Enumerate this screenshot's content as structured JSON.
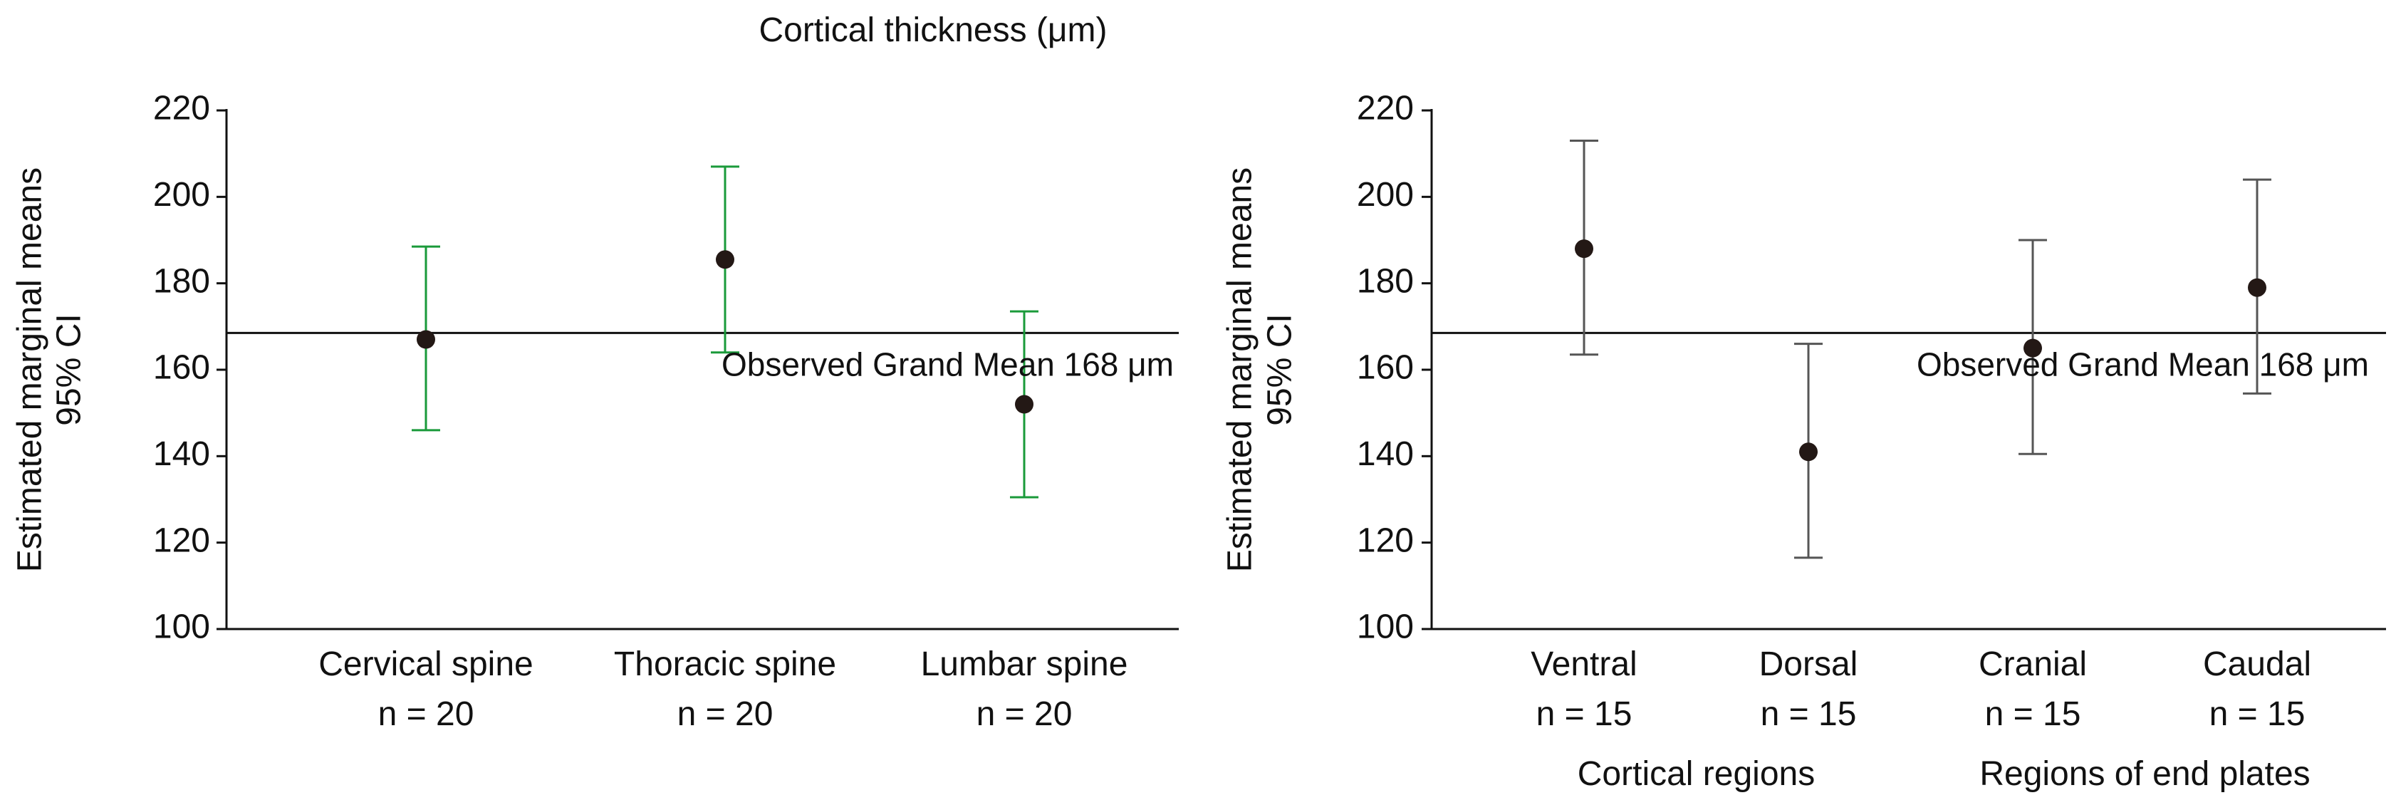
{
  "chart_data": [
    {
      "type": "errorbar",
      "title": "Cortical thickness (μm)",
      "ylabel_line1": "Estimated marginal means",
      "ylabel_line2": "95% CI",
      "ylim": [
        100,
        220
      ],
      "yticks": [
        100,
        120,
        140,
        160,
        180,
        200,
        220
      ],
      "categories": [
        "Cervical spine",
        "Thoracic spine",
        "Lumbar spine"
      ],
      "n_labels": [
        "n = 20",
        "n = 20",
        "n = 20"
      ],
      "group_labels": [],
      "means": [
        167,
        185.5,
        152
      ],
      "ci_lower": [
        146,
        164,
        130.5
      ],
      "ci_upper": [
        188.5,
        207,
        173.5
      ],
      "reference_line": {
        "value": 168.5,
        "label": "Observed Grand Mean 168 μm"
      },
      "colors": {
        "errorbar": "#1a9a3a",
        "marker": "#231815",
        "axis": "#111111"
      }
    },
    {
      "type": "errorbar",
      "ylabel_line1": "Estimated marginal means",
      "ylabel_line2": "95% CI",
      "ylim": [
        100,
        220
      ],
      "yticks": [
        100,
        120,
        140,
        160,
        180,
        200,
        220
      ],
      "categories": [
        "Ventral",
        "Dorsal",
        "Cranial",
        "Caudal"
      ],
      "n_labels": [
        "n = 15",
        "n = 15",
        "n = 15",
        "n = 15"
      ],
      "group_labels": [
        "Cortical regions",
        "Regions of end plates"
      ],
      "means": [
        188,
        141,
        165,
        179
      ],
      "ci_lower": [
        163.5,
        116.5,
        140.5,
        154.5
      ],
      "ci_upper": [
        213,
        166,
        190,
        204
      ],
      "reference_line": {
        "value": 168.5,
        "label": "Observed Grand Mean 168 μm"
      },
      "colors": {
        "errorbar": "#555555",
        "marker": "#231815",
        "axis": "#111111"
      }
    }
  ]
}
